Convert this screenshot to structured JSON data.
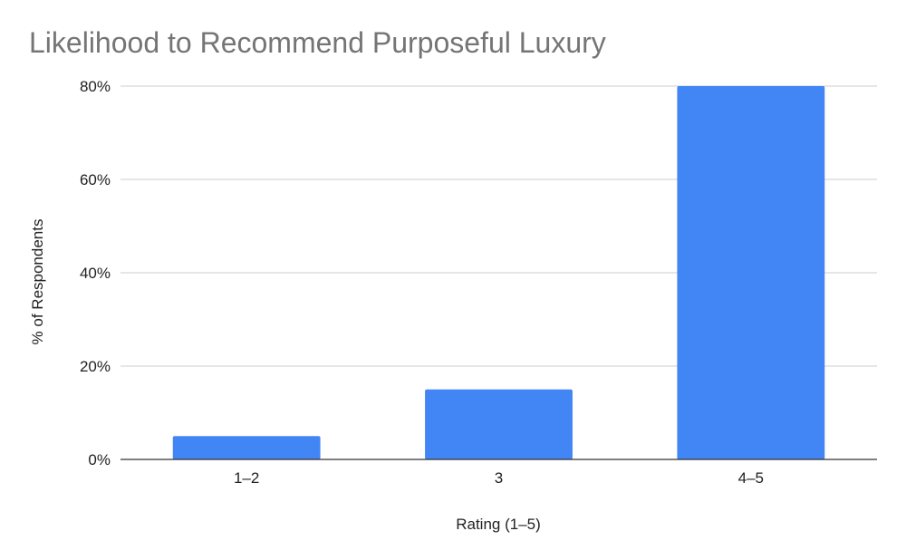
{
  "chart_data": {
    "type": "bar",
    "title": "Likelihood to Recommend Purposeful Luxury",
    "xlabel": "Rating (1–5)",
    "ylabel": "% of Respondents",
    "categories": [
      "1–2",
      "3",
      "4–5"
    ],
    "values": [
      5,
      15,
      80
    ],
    "ylim": [
      0,
      80
    ],
    "yticks": [
      0,
      20,
      40,
      60,
      80
    ],
    "ytick_labels": [
      "0%",
      "20%",
      "40%",
      "60%",
      "80%"
    ],
    "bar_color": "#4285f4",
    "grid": true,
    "legend": "none"
  }
}
